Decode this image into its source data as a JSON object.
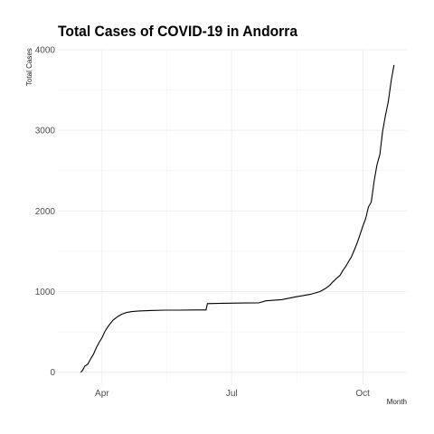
{
  "chart_data": {
    "type": "line",
    "title": "Total Cases of COVID-19 in Andorra",
    "xlabel": "Month",
    "ylabel": "Total Cases",
    "x_tick_labels": [
      "Apr",
      "Jul",
      "Oct"
    ],
    "x_tick_dates": [
      "2020-04-01",
      "2020-07-01",
      "2020-10-01"
    ],
    "xlim": [
      "2020-03-01",
      "2020-11-01"
    ],
    "y_ticks": [
      0,
      1000,
      2000,
      3000,
      4000
    ],
    "ylim": [
      -150,
      4000
    ],
    "grid": true,
    "series": [
      {
        "x": [
          "2020-03-17",
          "2020-03-18",
          "2020-03-20",
          "2020-03-22",
          "2020-03-24",
          "2020-03-26",
          "2020-03-28",
          "2020-03-30",
          "2020-04-01",
          "2020-04-03",
          "2020-04-05",
          "2020-04-07",
          "2020-04-09",
          "2020-04-12",
          "2020-04-15",
          "2020-04-18",
          "2020-04-22",
          "2020-04-27",
          "2020-05-05",
          "2020-05-15",
          "2020-05-25",
          "2020-06-05",
          "2020-06-13",
          "2020-06-14",
          "2020-06-25",
          "2020-07-10",
          "2020-07-20",
          "2020-07-25",
          "2020-08-05",
          "2020-08-15",
          "2020-08-25",
          "2020-09-01",
          "2020-09-05",
          "2020-09-08",
          "2020-09-10",
          "2020-09-13",
          "2020-09-15",
          "2020-09-17",
          "2020-09-19",
          "2020-09-21",
          "2020-09-23",
          "2020-09-25",
          "2020-09-27",
          "2020-09-29",
          "2020-10-01",
          "2020-10-03",
          "2020-10-05",
          "2020-10-07",
          "2020-10-09",
          "2020-10-11",
          "2020-10-13",
          "2020-10-15",
          "2020-10-17",
          "2020-10-19",
          "2020-10-21",
          "2020-10-23"
        ],
        "y": [
          0,
          14,
          75,
          100,
          164,
          224,
          303,
          370,
          428,
          505,
          560,
          608,
          650,
          690,
          720,
          740,
          752,
          760,
          765,
          770,
          770,
          772,
          772,
          850,
          855,
          858,
          860,
          885,
          900,
          935,
          965,
          1000,
          1040,
          1080,
          1120,
          1170,
          1200,
          1260,
          1310,
          1370,
          1430,
          1510,
          1600,
          1700,
          1810,
          1900,
          2050,
          2110,
          2370,
          2570,
          2700,
          2990,
          3190,
          3360,
          3620,
          3810
        ]
      }
    ]
  }
}
